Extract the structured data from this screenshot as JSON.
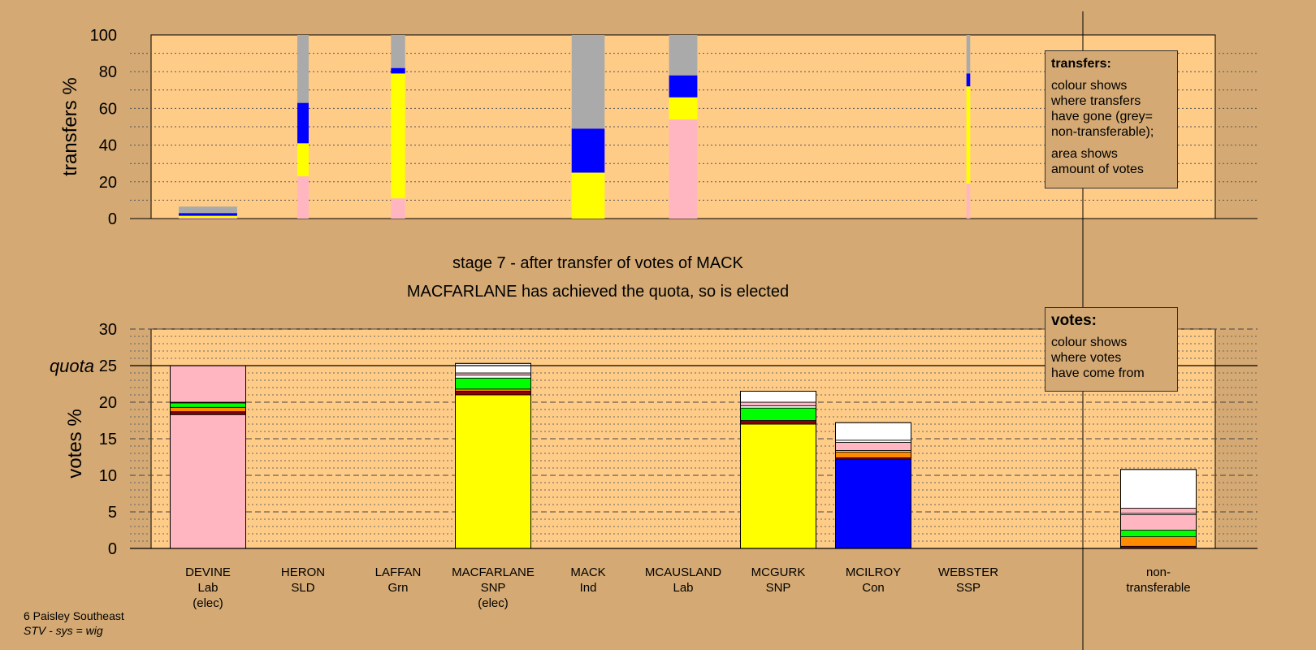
{
  "title": "stage 7 - after transfer of votes of MACK",
  "subtitle": "MACFARLANE has achieved the quota, so is elected",
  "footer": {
    "constituency": "6 Paisley Southeast",
    "system": "STV - sys = wig"
  },
  "transfers_legend": {
    "title": "transfers:",
    "line1": "colour shows\nwhere transfers\nhave gone (grey=\nnon-transferable);",
    "line2": "area shows\namount of votes"
  },
  "votes_legend": {
    "title": "votes:",
    "line1": "colour shows\nwhere votes\nhave come from"
  },
  "colors": {
    "Lab": "#ffb6c1",
    "SNP": "#ffff00",
    "Con": "#0000ff",
    "SLD": "#8b0000",
    "Grn": "#00ff00",
    "Ind": "#ffffff",
    "SSP": "#ff8c00",
    "nontransferable": "#aaaaaa",
    "plot_bg": "#ffcc88"
  },
  "chart_data": [
    {
      "type": "bar",
      "ylabel": "transfers %",
      "ylim": [
        0,
        100
      ],
      "yticks": [
        0,
        20,
        40,
        60,
        80,
        100
      ],
      "bars": [
        {
          "candidate": "DEVINE",
          "width_rel": 0.62,
          "segments": [
            {
              "party": "Lab",
              "value": 0.5
            },
            {
              "party": "SNP",
              "value": 1
            },
            {
              "party": "Con",
              "value": 1.5
            },
            {
              "party": "nontransferable",
              "value": 3.5
            }
          ]
        },
        {
          "candidate": "HERON",
          "width_rel": 0.12,
          "segments": [
            {
              "party": "Lab",
              "value": 23
            },
            {
              "party": "SNP",
              "value": 18
            },
            {
              "party": "Con",
              "value": 22
            },
            {
              "party": "nontransferable",
              "value": 37
            }
          ]
        },
        {
          "candidate": "LAFFAN",
          "width_rel": 0.15,
          "segments": [
            {
              "party": "Lab",
              "value": 11
            },
            {
              "party": "SNP",
              "value": 68
            },
            {
              "party": "Con",
              "value": 3
            },
            {
              "party": "nontransferable",
              "value": 18
            }
          ]
        },
        {
          "candidate": "MACK",
          "width_rel": 0.35,
          "segments": [
            {
              "party": "SNP",
              "value": 25
            },
            {
              "party": "Con",
              "value": 24
            },
            {
              "party": "nontransferable",
              "value": 51
            }
          ]
        },
        {
          "candidate": "MCAUSLAND",
          "width_rel": 0.3,
          "segments": [
            {
              "party": "Lab",
              "value": 54
            },
            {
              "party": "SNP",
              "value": 12
            },
            {
              "party": "Con",
              "value": 12
            },
            {
              "party": "nontransferable",
              "value": 22
            }
          ]
        },
        {
          "candidate": "WEBSTER",
          "width_rel": 0.04,
          "segments": [
            {
              "party": "Lab",
              "value": 19
            },
            {
              "party": "SNP",
              "value": 53
            },
            {
              "party": "Con",
              "value": 7
            },
            {
              "party": "nontransferable",
              "value": 21
            }
          ]
        }
      ]
    },
    {
      "type": "bar",
      "ylabel": "votes %",
      "ylim": [
        0,
        30
      ],
      "yticks": [
        0,
        5,
        10,
        15,
        20,
        25,
        30
      ],
      "quota": 25,
      "quota_label": "quota",
      "candidates": [
        {
          "name": "DEVINE",
          "party": "Lab",
          "status": "(elec)",
          "segments": [
            {
              "party": "Lab",
              "value": 18.3
            },
            {
              "party": "SLD",
              "value": 0.4
            },
            {
              "party": "SSP",
              "value": 0.6
            },
            {
              "party": "Grn",
              "value": 0.6
            },
            {
              "party": "SNP",
              "value": 0.1
            },
            {
              "party": "Lab",
              "value": 5.0
            }
          ]
        },
        {
          "name": "HERON",
          "party": "SLD",
          "status": "",
          "segments": []
        },
        {
          "name": "LAFFAN",
          "party": "Grn",
          "status": "",
          "segments": []
        },
        {
          "name": "MACFARLANE",
          "party": "SNP",
          "status": "(elec)",
          "segments": [
            {
              "party": "SNP",
              "value": 21.0
            },
            {
              "party": "SLD",
              "value": 0.5
            },
            {
              "party": "SSP",
              "value": 0.3
            },
            {
              "party": "Grn",
              "value": 1.5
            },
            {
              "party": "Ind",
              "value": 0.4
            },
            {
              "party": "Lab",
              "value": 0.3
            },
            {
              "party": "Ind",
              "value": 1.3
            }
          ]
        },
        {
          "name": "MACK",
          "party": "Ind",
          "status": "",
          "segments": []
        },
        {
          "name": "MCAUSLAND",
          "party": "Lab",
          "status": "",
          "segments": []
        },
        {
          "name": "MCGURK",
          "party": "SNP",
          "status": "",
          "segments": [
            {
              "party": "SNP",
              "value": 17.0
            },
            {
              "party": "SLD",
              "value": 0.5
            },
            {
              "party": "Grn",
              "value": 1.7
            },
            {
              "party": "Ind",
              "value": 0.3
            },
            {
              "party": "Lab",
              "value": 0.5
            },
            {
              "party": "Ind",
              "value": 1.5
            }
          ]
        },
        {
          "name": "MCILROY",
          "party": "Con",
          "status": "",
          "segments": [
            {
              "party": "Con",
              "value": 12.2
            },
            {
              "party": "SLD",
              "value": 0.2
            },
            {
              "party": "SSP",
              "value": 0.8
            },
            {
              "party": "Ind",
              "value": 0.2
            },
            {
              "party": "Lab",
              "value": 1.1
            },
            {
              "party": "Ind",
              "value": 0.3
            },
            {
              "party": "Ind",
              "value": 2.4
            }
          ]
        },
        {
          "name": "WEBSTER",
          "party": "SSP",
          "status": "",
          "segments": []
        },
        {
          "name": "non-",
          "party": "transferable",
          "status": "",
          "is_nontransferable": true,
          "segments": [
            {
              "party": "SLD",
              "value": 0.3
            },
            {
              "party": "SSP",
              "value": 1.3
            },
            {
              "party": "Grn",
              "value": 0.9
            },
            {
              "party": "Lab",
              "value": 2.1
            },
            {
              "party": "Ind",
              "value": 0.2
            },
            {
              "party": "Lab",
              "value": 0.7
            },
            {
              "party": "Ind",
              "value": 5.3
            }
          ]
        }
      ]
    }
  ]
}
